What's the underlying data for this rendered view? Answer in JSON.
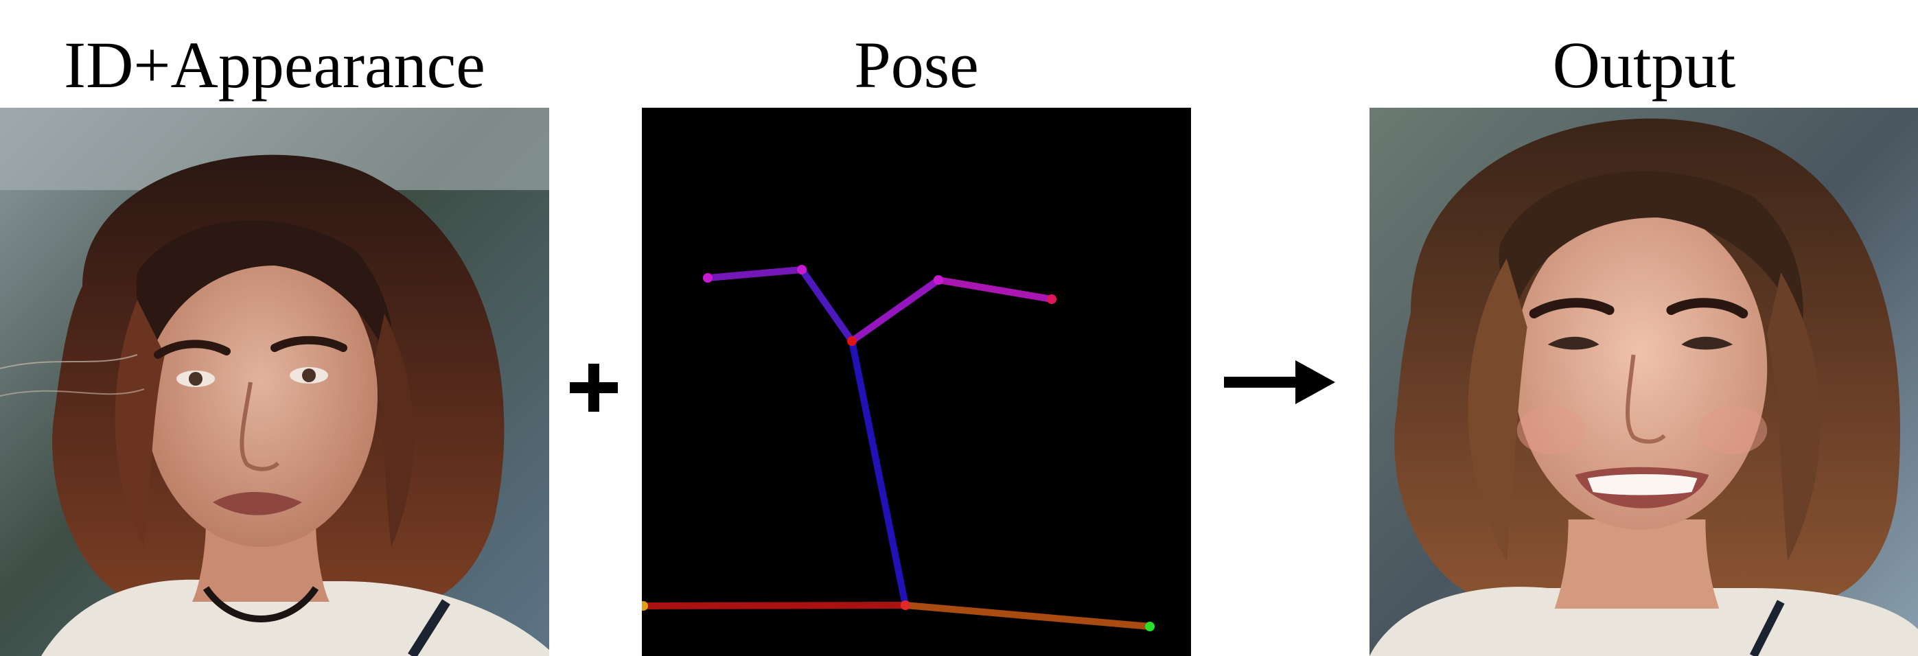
{
  "labels": {
    "input": "ID+Appearance",
    "pose": "Pose",
    "output": "Output"
  },
  "operators": {
    "combine": "plus-icon",
    "produces": "right-arrow-icon"
  },
  "colors": {
    "background": "#ffffff",
    "pose_background": "#000000",
    "hair_dark": "#2a1a14",
    "hair_brown": "#6b3a24",
    "skin": "#d9a58c",
    "skin_output": "#e6b39c",
    "sweater": "#e9e4dc"
  },
  "pose_skeleton": {
    "bones": [
      {
        "from": "left-eye-outer",
        "to": "left-eye",
        "color": "#8a1ad8"
      },
      {
        "from": "left-eye",
        "to": "nose",
        "color": "#5a1ee0"
      },
      {
        "from": "nose",
        "to": "right-eye",
        "color": "#b01ae0"
      },
      {
        "from": "right-eye",
        "to": "right-ear",
        "color": "#c81ad0"
      },
      {
        "from": "nose",
        "to": "neck",
        "color": "#2616d8"
      },
      {
        "from": "left-shoulder",
        "to": "neck",
        "color": "#c81616"
      },
      {
        "from": "neck",
        "to": "right-shoulder",
        "color": "#c85a14"
      }
    ],
    "joints": [
      {
        "name": "left-eye-outer",
        "color": "#c81ad0"
      },
      {
        "name": "left-eye",
        "color": "#c81ad0"
      },
      {
        "name": "nose",
        "color": "#e01616"
      },
      {
        "name": "right-eye",
        "color": "#c81ad0"
      },
      {
        "name": "right-ear",
        "color": "#e0165a"
      },
      {
        "name": "neck",
        "color": "#e02a2a"
      },
      {
        "name": "left-shoulder",
        "color": "#e0a016"
      },
      {
        "name": "right-shoulder",
        "color": "#2ae02a"
      }
    ]
  }
}
